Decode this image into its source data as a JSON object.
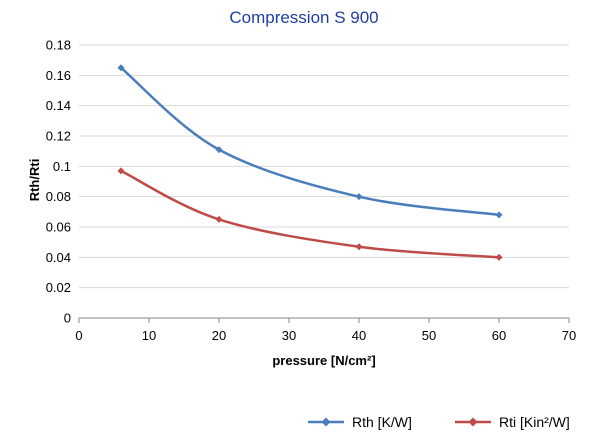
{
  "chart_data": {
    "type": "line",
    "title": "Compression S 900",
    "xlabel": "pressure [N/cm²]",
    "ylabel": "Rth/Rti",
    "xlim": [
      0,
      70
    ],
    "ylim": [
      0,
      0.18
    ],
    "x_ticks": [
      "0",
      "10",
      "20",
      "30",
      "40",
      "50",
      "60",
      "70"
    ],
    "y_ticks": [
      "0",
      "0.02",
      "0.04",
      "0.06",
      "0.08",
      "0.1",
      "0.12",
      "0.14",
      "0.16",
      "0.18"
    ],
    "grid": "horizontal",
    "legend_position": "bottom-right",
    "series": [
      {
        "name": "Rth [K/W]",
        "color": "#4a7ebb",
        "x": [
          6,
          20,
          40,
          60
        ],
        "y": [
          0.165,
          0.111,
          0.08,
          0.068
        ]
      },
      {
        "name": "Rti [Kin²/W]",
        "color": "#be4b48",
        "x": [
          6,
          20,
          40,
          60
        ],
        "y": [
          0.097,
          0.065,
          0.047,
          0.04
        ]
      }
    ]
  }
}
